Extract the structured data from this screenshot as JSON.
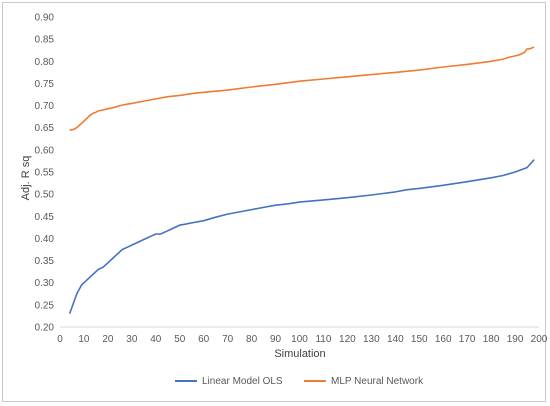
{
  "chart_data": {
    "type": "line",
    "xlabel": "Simulation",
    "ylabel": "Adj. R sq",
    "xlim": [
      0,
      200
    ],
    "ylim": [
      0.2,
      0.9
    ],
    "x_ticks": [
      "0",
      "10",
      "20",
      "30",
      "40",
      "50",
      "60",
      "70",
      "80",
      "90",
      "100",
      "110",
      "120",
      "130",
      "140",
      "150",
      "160",
      "170",
      "180",
      "190",
      "200"
    ],
    "y_ticks": [
      "0.20",
      "0.25",
      "0.30",
      "0.35",
      "0.40",
      "0.45",
      "0.50",
      "0.55",
      "0.60",
      "0.65",
      "0.70",
      "0.75",
      "0.80",
      "0.85",
      "0.90"
    ],
    "grid": "none",
    "legend": "bottom",
    "series": [
      {
        "name": "Linear Model OLS",
        "color": "#4472C4",
        "x": [
          4,
          5,
          6,
          7,
          8,
          9,
          10,
          12,
          14,
          16,
          18,
          20,
          22,
          24,
          26,
          28,
          30,
          32,
          34,
          36,
          38,
          40,
          42,
          44,
          46,
          48,
          50,
          52,
          55,
          60,
          65,
          70,
          75,
          80,
          85,
          90,
          95,
          100,
          110,
          120,
          130,
          140,
          145,
          150,
          160,
          170,
          180,
          185,
          190,
          195,
          197,
          198
        ],
        "y": [
          0.23,
          0.245,
          0.26,
          0.275,
          0.285,
          0.295,
          0.3,
          0.31,
          0.32,
          0.33,
          0.335,
          0.345,
          0.355,
          0.365,
          0.375,
          0.38,
          0.385,
          0.39,
          0.395,
          0.4,
          0.405,
          0.41,
          0.41,
          0.415,
          0.42,
          0.425,
          0.43,
          0.432,
          0.435,
          0.44,
          0.448,
          0.455,
          0.46,
          0.465,
          0.47,
          0.475,
          0.478,
          0.482,
          0.487,
          0.492,
          0.498,
          0.505,
          0.51,
          0.513,
          0.52,
          0.528,
          0.537,
          0.542,
          0.55,
          0.56,
          0.572,
          0.578
        ]
      },
      {
        "name": "MLP Neural Network",
        "color": "#ED7D31",
        "x": [
          4,
          5,
          6,
          7,
          8,
          9,
          10,
          11,
          12,
          13,
          14,
          15,
          16,
          18,
          20,
          22,
          25,
          28,
          30,
          35,
          40,
          45,
          50,
          55,
          60,
          70,
          80,
          90,
          100,
          110,
          120,
          130,
          140,
          150,
          160,
          170,
          180,
          185,
          188,
          190,
          192,
          194,
          195,
          196,
          197,
          198
        ],
        "y": [
          0.645,
          0.645,
          0.647,
          0.65,
          0.655,
          0.66,
          0.665,
          0.67,
          0.675,
          0.68,
          0.683,
          0.685,
          0.688,
          0.69,
          0.693,
          0.695,
          0.7,
          0.703,
          0.705,
          0.71,
          0.715,
          0.72,
          0.723,
          0.727,
          0.73,
          0.735,
          0.742,
          0.748,
          0.755,
          0.76,
          0.765,
          0.77,
          0.775,
          0.78,
          0.787,
          0.793,
          0.8,
          0.805,
          0.81,
          0.812,
          0.815,
          0.82,
          0.828,
          0.828,
          0.83,
          0.832
        ]
      }
    ]
  }
}
